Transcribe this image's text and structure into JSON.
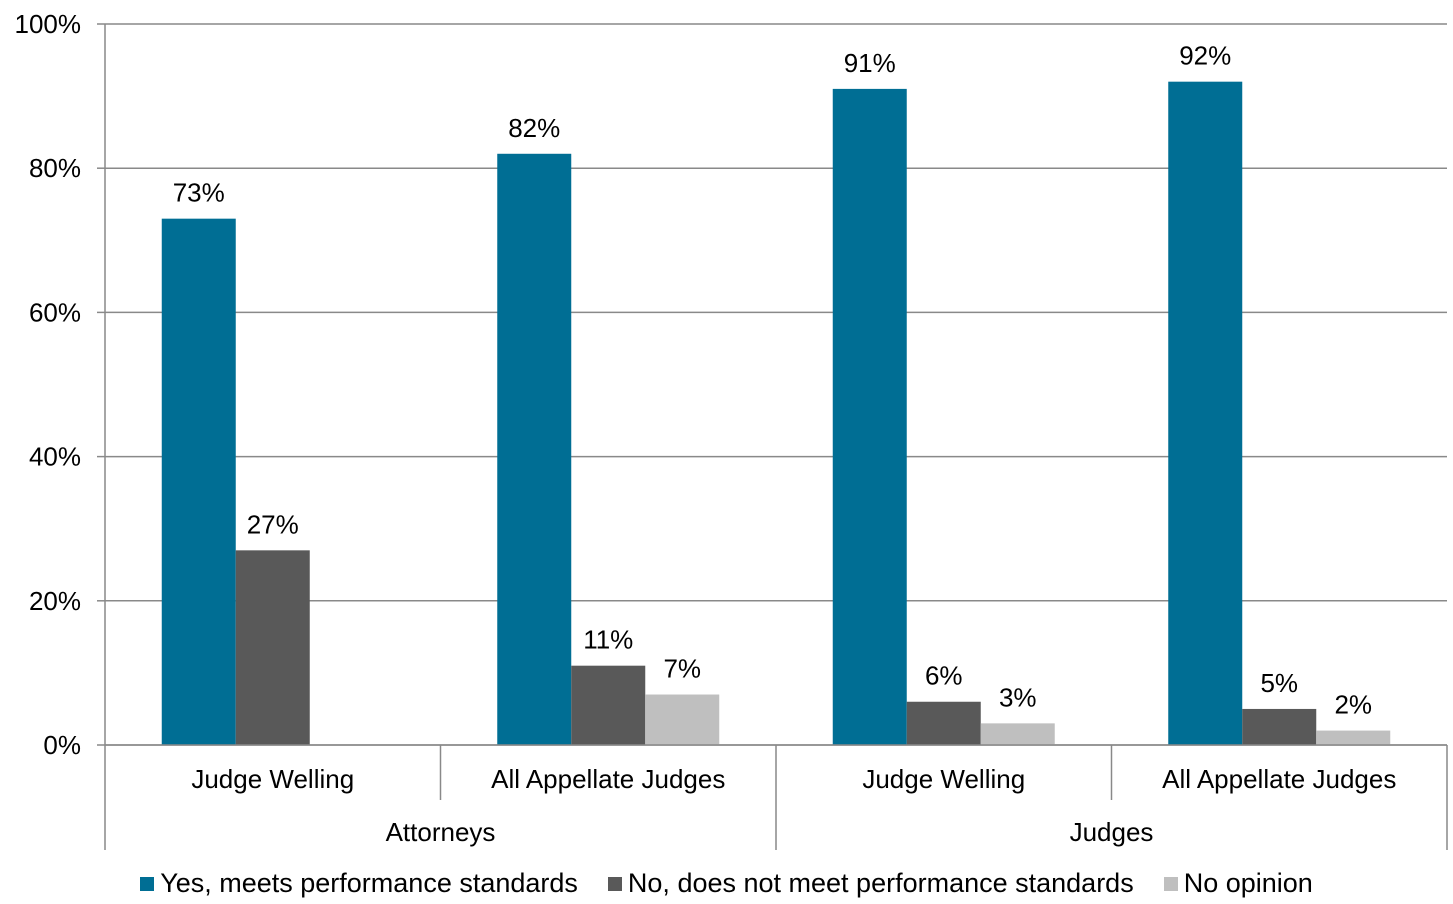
{
  "chart_data": {
    "type": "bar",
    "title": "",
    "xlabel": "",
    "ylabel": "",
    "ylim": [
      0,
      100
    ],
    "y_ticks": [
      "0%",
      "20%",
      "40%",
      "60%",
      "80%",
      "100%"
    ],
    "y_tick_values": [
      0,
      20,
      40,
      60,
      80,
      100
    ],
    "categories": [
      "Judge Welling",
      "All Appellate Judges",
      "Judge Welling",
      "All Appellate Judges"
    ],
    "groups": [
      {
        "label": "Attorneys",
        "span": 2
      },
      {
        "label": "Judges",
        "span": 2
      }
    ],
    "series": [
      {
        "name": "Yes, meets performance standards",
        "color": "#006E94",
        "values": [
          73,
          82,
          91,
          92
        ],
        "labels": [
          "73%",
          "82%",
          "91%",
          "92%"
        ]
      },
      {
        "name": "No, does not meet performance standards",
        "color": "#595959",
        "values": [
          27,
          11,
          6,
          5
        ],
        "labels": [
          "27%",
          "11%",
          "6%",
          "5%"
        ]
      },
      {
        "name": "No opinion",
        "color": "#BFBFBF",
        "values": [
          null,
          7,
          3,
          2
        ],
        "labels": [
          null,
          "7%",
          "3%",
          "2%"
        ]
      }
    ],
    "grid": true,
    "legend_position": "bottom"
  }
}
